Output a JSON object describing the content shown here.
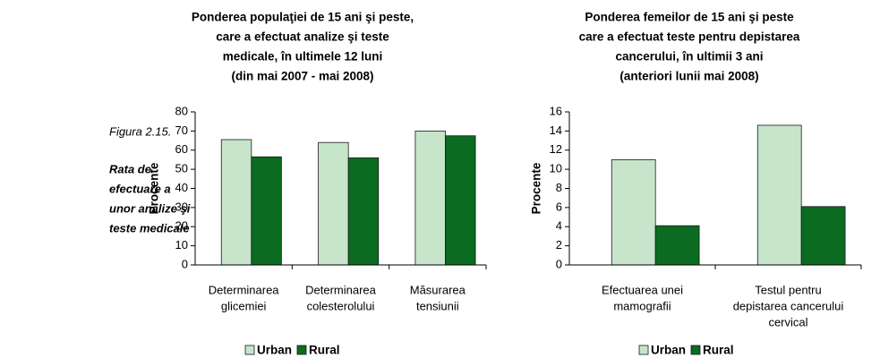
{
  "figure": {
    "label": "Figura 2.15.",
    "caption": [
      "Rata de",
      "efectuare a",
      "unor analize şi",
      "teste medicale"
    ]
  },
  "chart_data": [
    {
      "type": "bar",
      "title": [
        "Ponderea populaţiei de 15 ani şi peste,",
        "care a efectuat analize şi teste",
        "medicale, în ultimele 12 luni",
        "(din mai 2007 - mai 2008)"
      ],
      "y_label": "Procente",
      "categories": [
        [
          "Determinarea",
          "glicemiei"
        ],
        [
          "Determinarea",
          "colesterolului"
        ],
        [
          "Măsurarea",
          "tensiunii"
        ]
      ],
      "series": [
        {
          "name": "Urban",
          "color": "#c6e5cb",
          "values": [
            65.5,
            64,
            70
          ]
        },
        {
          "name": "Rural",
          "color": "#0b6b20",
          "values": [
            56.5,
            56,
            67.5
          ]
        }
      ],
      "ylim": [
        0,
        80
      ],
      "yticks": [
        0,
        10,
        20,
        30,
        40,
        50,
        60,
        70,
        80
      ]
    },
    {
      "type": "bar",
      "title": [
        "Ponderea femeilor de 15 ani şi peste",
        "care a efectuat teste pentru depistarea",
        "cancerului, în ultimii 3 ani",
        "(anteriori lunii mai 2008)"
      ],
      "y_label": "Procente",
      "categories": [
        [
          "Efectuarea unei",
          "mamografii"
        ],
        [
          "Testul pentru",
          "depistarea cancerului",
          "cervical"
        ]
      ],
      "series": [
        {
          "name": "Urban",
          "color": "#c6e5cb",
          "values": [
            11,
            14.6
          ]
        },
        {
          "name": "Rural",
          "color": "#0b6b20",
          "values": [
            4.1,
            6.1
          ]
        }
      ],
      "ylim": [
        0,
        16
      ],
      "yticks": [
        0,
        2,
        4,
        6,
        8,
        10,
        12,
        14,
        16
      ]
    }
  ]
}
